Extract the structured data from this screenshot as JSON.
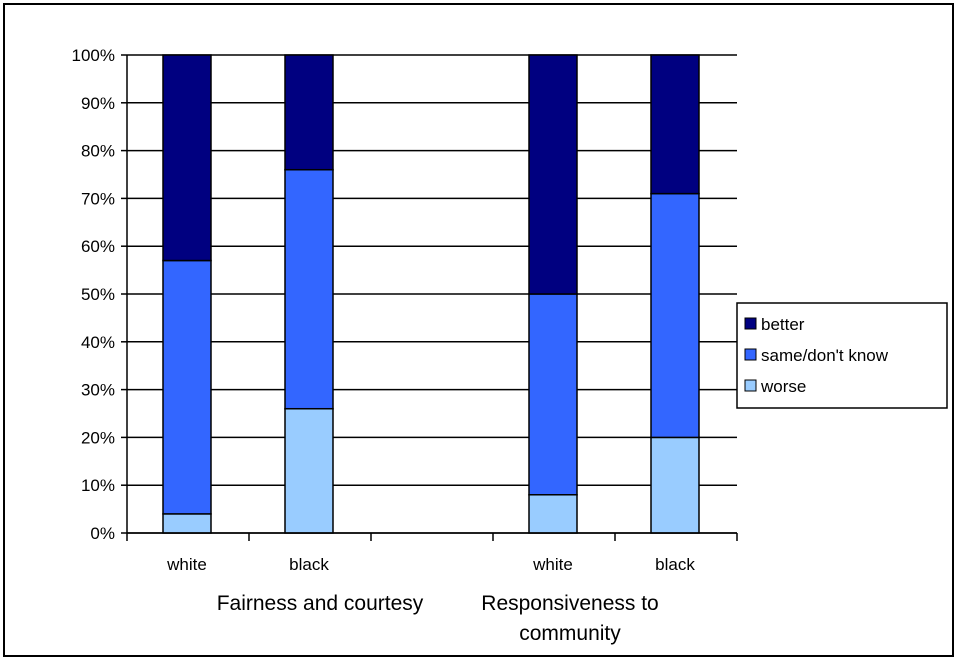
{
  "chart_data": {
    "type": "bar",
    "stacked": true,
    "percent": true,
    "groups": [
      {
        "label": "Fairness and courtesy",
        "categories": [
          "white",
          "black"
        ]
      },
      {
        "label": "Responsiveness to community",
        "label_lines": [
          "Responsiveness to",
          "community"
        ],
        "categories": [
          "white",
          "black"
        ]
      }
    ],
    "categories": [
      "white",
      "black",
      "white",
      "black"
    ],
    "series": [
      {
        "name": "worse",
        "color": "#99CCFF",
        "values": [
          4,
          26,
          8,
          20
        ]
      },
      {
        "name": "same/don't know",
        "color": "#3366FF",
        "values": [
          53,
          50,
          42,
          51
        ]
      },
      {
        "name": "better",
        "color": "#000080",
        "values": [
          43,
          24,
          50,
          29
        ]
      }
    ],
    "ylim": [
      0,
      100
    ],
    "yticks": [
      "0%",
      "10%",
      "20%",
      "30%",
      "40%",
      "50%",
      "60%",
      "70%",
      "80%",
      "90%",
      "100%"
    ],
    "legend": {
      "position": "right",
      "order": [
        "better",
        "same/don't know",
        "worse"
      ]
    },
    "grid": true
  }
}
